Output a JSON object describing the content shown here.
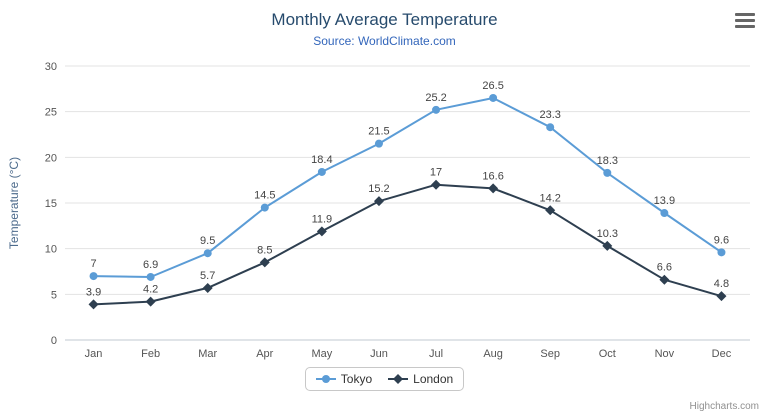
{
  "chart_data": {
    "type": "line",
    "title": "Monthly Average Temperature",
    "subtitle": "Source: WorldClimate.com",
    "xlabel": "",
    "ylabel": "Temperature (°C)",
    "ylim": [
      0,
      30
    ],
    "ytick_step": 5,
    "grid": true,
    "legend_position": "bottom-center",
    "categories": [
      "Jan",
      "Feb",
      "Mar",
      "Apr",
      "May",
      "Jun",
      "Jul",
      "Aug",
      "Sep",
      "Oct",
      "Nov",
      "Dec"
    ],
    "series": [
      {
        "name": "Tokyo",
        "color": "#5b9cd6",
        "marker": "circle",
        "values": [
          7,
          6.9,
          9.5,
          14.5,
          18.4,
          21.5,
          25.2,
          26.5,
          23.3,
          18.3,
          13.9,
          9.6
        ]
      },
      {
        "name": "London",
        "color": "#2e3f50",
        "marker": "diamond",
        "values": [
          3.9,
          4.2,
          5.7,
          8.5,
          11.9,
          15.2,
          17,
          16.6,
          14.2,
          10.3,
          6.6,
          4.8
        ]
      }
    ],
    "colors": {
      "title": "#274b6d",
      "subtitle": "#3366bb",
      "gridline": "#e3e3e3",
      "axis_line": "#c0c8d0",
      "axis_label": "#555555",
      "data_label": "#444444"
    }
  },
  "credits": "Highcharts.com",
  "icons": {
    "menu": "hamburger-menu-icon"
  }
}
